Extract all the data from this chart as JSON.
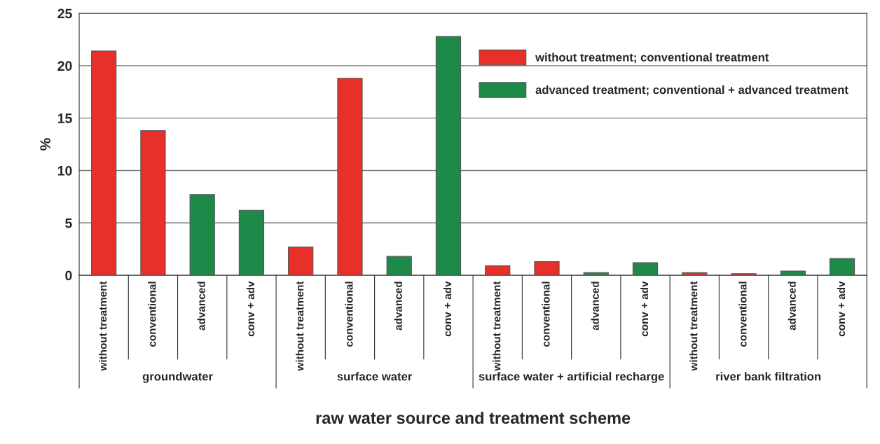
{
  "chart_data": {
    "type": "bar",
    "xlabel": "raw water source and treatment scheme",
    "ylabel": "%",
    "categories": [
      "without treatment",
      "conventional",
      "advanced",
      "conv + adv",
      "without treatment",
      "conventional",
      "advanced",
      "conv + adv",
      "without treatment",
      "conventional",
      "advanced",
      "conv + adv",
      "without treatment",
      "conventional",
      "advanced",
      "conv + adv"
    ],
    "series": [
      {
        "name": "without treatment; conventional treatment",
        "color": "#e8302a",
        "values": [
          21.4,
          13.8,
          null,
          null,
          2.7,
          18.8,
          null,
          null,
          0.9,
          1.3,
          null,
          null,
          0.25,
          0.15,
          null,
          null
        ]
      },
      {
        "name": "advanced treatment; conventional + advanced treatment",
        "color": "#1e8a4a",
        "values": [
          null,
          null,
          7.7,
          6.2,
          null,
          null,
          1.8,
          22.8,
          null,
          null,
          0.25,
          1.2,
          null,
          null,
          0.4,
          1.6
        ]
      }
    ],
    "ylim": [
      0,
      25
    ],
    "yticks": [
      0,
      5,
      10,
      15,
      20,
      25
    ],
    "grid": "y",
    "legend": "top right",
    "annotations": [
      "groundwater",
      "surface water",
      "surface water + artificial recharge",
      "river bank filtration"
    ]
  }
}
